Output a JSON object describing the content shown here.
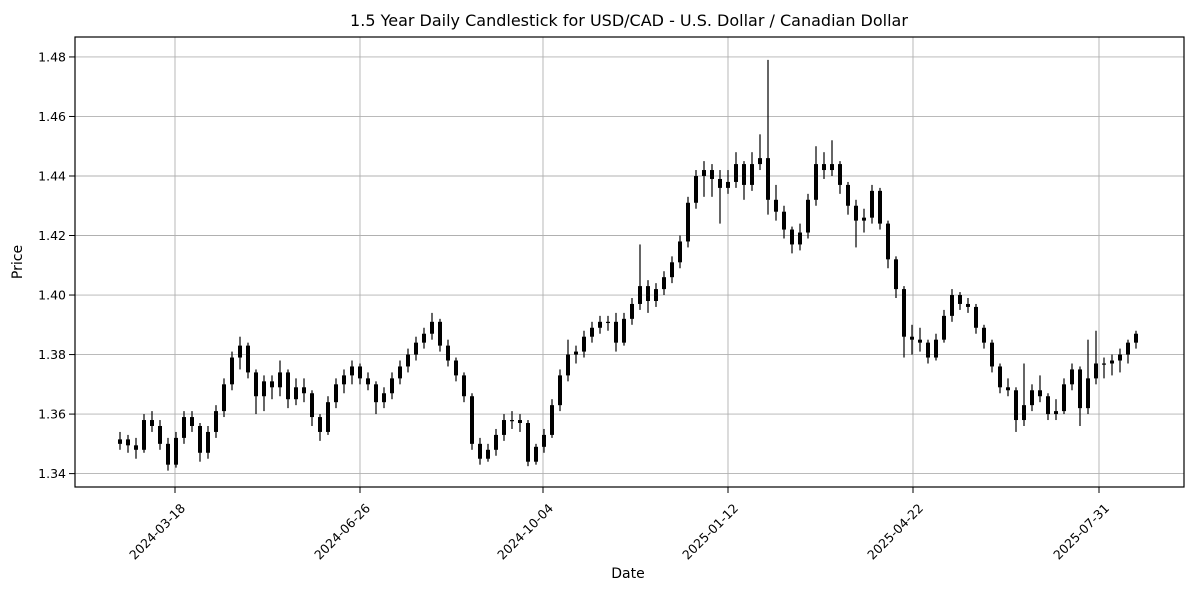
{
  "figure": {
    "title": "1.5 Year Daily Candlestick for USD/CAD - U.S. Dollar / Canadian Dollar",
    "xlabel": "Date",
    "ylabel": "Price"
  },
  "chart_data": {
    "type": "candlestick",
    "symbol": "USD/CAD",
    "title": "1.5 Year Daily Candlestick for USD/CAD - U.S. Dollar / Canadian Dollar",
    "xlabel": "Date",
    "ylabel": "Price",
    "grid": true,
    "legend": false,
    "ylim": [
      1.3355,
      1.4867
    ],
    "yticks": [
      1.34,
      1.36,
      1.38,
      1.4,
      1.42,
      1.44,
      1.46,
      1.48
    ],
    "xticks": [
      {
        "label": "2024-03-18",
        "index": 6.875
      },
      {
        "label": "2024-06-26",
        "index": 30.0
      },
      {
        "label": "2024-10-04",
        "index": 52.875
      },
      {
        "label": "2025-01-12",
        "index": 76.0
      },
      {
        "label": "2025-04-22",
        "index": 99.125
      },
      {
        "label": "2025-07-31",
        "index": 122.375
      }
    ],
    "colors": {
      "candle": "#000000",
      "grid": "#b0b0b0",
      "frame": "#000000",
      "background": "#ffffff"
    },
    "columns": [
      "date",
      "open",
      "high",
      "low",
      "close"
    ],
    "candles": [
      [
        "2024-02-17",
        1.35,
        1.354,
        1.348,
        1.3515
      ],
      [
        "2024-02-21",
        1.3515,
        1.353,
        1.347,
        1.3495
      ],
      [
        "2024-02-26",
        1.3495,
        1.352,
        1.345,
        1.348
      ],
      [
        "2024-03-01",
        1.348,
        1.36,
        1.347,
        1.358
      ],
      [
        "2024-03-06",
        1.358,
        1.361,
        1.354,
        1.356
      ],
      [
        "2024-03-10",
        1.356,
        1.358,
        1.348,
        1.35
      ],
      [
        "2024-03-14",
        1.35,
        1.352,
        1.341,
        1.343
      ],
      [
        "2024-03-19",
        1.343,
        1.354,
        1.342,
        1.352
      ],
      [
        "2024-03-23",
        1.352,
        1.361,
        1.35,
        1.359
      ],
      [
        "2024-03-28",
        1.359,
        1.361,
        1.354,
        1.356
      ],
      [
        "2024-04-01",
        1.356,
        1.357,
        1.344,
        1.347
      ],
      [
        "2024-04-05",
        1.347,
        1.356,
        1.345,
        1.354
      ],
      [
        "2024-04-10",
        1.354,
        1.363,
        1.352,
        1.361
      ],
      [
        "2024-04-14",
        1.361,
        1.372,
        1.359,
        1.37
      ],
      [
        "2024-04-18",
        1.37,
        1.381,
        1.368,
        1.379
      ],
      [
        "2024-04-23",
        1.379,
        1.386,
        1.375,
        1.383
      ],
      [
        "2024-04-27",
        1.383,
        1.384,
        1.372,
        1.374
      ],
      [
        "2024-05-01",
        1.374,
        1.375,
        1.36,
        1.366
      ],
      [
        "2024-05-06",
        1.366,
        1.373,
        1.361,
        1.371
      ],
      [
        "2024-05-10",
        1.371,
        1.373,
        1.365,
        1.369
      ],
      [
        "2024-05-14",
        1.369,
        1.378,
        1.366,
        1.374
      ],
      [
        "2024-05-19",
        1.374,
        1.375,
        1.362,
        1.365
      ],
      [
        "2024-05-23",
        1.365,
        1.372,
        1.363,
        1.369
      ],
      [
        "2024-05-27",
        1.369,
        1.372,
        1.364,
        1.367
      ],
      [
        "2024-06-01",
        1.367,
        1.368,
        1.356,
        1.359
      ],
      [
        "2024-06-05",
        1.359,
        1.36,
        1.351,
        1.354
      ],
      [
        "2024-06-09",
        1.354,
        1.366,
        1.353,
        1.364
      ],
      [
        "2024-06-14",
        1.364,
        1.372,
        1.362,
        1.37
      ],
      [
        "2024-06-18",
        1.37,
        1.375,
        1.367,
        1.373
      ],
      [
        "2024-06-22",
        1.373,
        1.378,
        1.37,
        1.376
      ],
      [
        "2024-06-27",
        1.376,
        1.377,
        1.37,
        1.372
      ],
      [
        "2024-07-01",
        1.372,
        1.374,
        1.368,
        1.37
      ],
      [
        "2024-07-05",
        1.37,
        1.371,
        1.36,
        1.364
      ],
      [
        "2024-07-10",
        1.364,
        1.369,
        1.362,
        1.367
      ],
      [
        "2024-07-14",
        1.367,
        1.374,
        1.365,
        1.372
      ],
      [
        "2024-07-18",
        1.372,
        1.378,
        1.37,
        1.376
      ],
      [
        "2024-07-23",
        1.376,
        1.382,
        1.374,
        1.38
      ],
      [
        "2024-07-27",
        1.38,
        1.386,
        1.378,
        1.384
      ],
      [
        "2024-07-31",
        1.384,
        1.389,
        1.382,
        1.387
      ],
      [
        "2024-08-05",
        1.387,
        1.394,
        1.385,
        1.391
      ],
      [
        "2024-08-09",
        1.391,
        1.392,
        1.381,
        1.383
      ],
      [
        "2024-08-13",
        1.383,
        1.385,
        1.376,
        1.378
      ],
      [
        "2024-08-18",
        1.378,
        1.379,
        1.371,
        1.373
      ],
      [
        "2024-08-22",
        1.373,
        1.374,
        1.364,
        1.366
      ],
      [
        "2024-08-26",
        1.366,
        1.367,
        1.348,
        1.35
      ],
      [
        "2024-08-31",
        1.35,
        1.352,
        1.343,
        1.345
      ],
      [
        "2024-09-04",
        1.345,
        1.35,
        1.344,
        1.348
      ],
      [
        "2024-09-08",
        1.348,
        1.355,
        1.346,
        1.353
      ],
      [
        "2024-09-13",
        1.353,
        1.36,
        1.351,
        1.358
      ],
      [
        "2024-09-17",
        1.358,
        1.361,
        1.355,
        1.358
      ],
      [
        "2024-09-21",
        1.358,
        1.36,
        1.354,
        1.357
      ],
      [
        "2024-09-26",
        1.357,
        1.358,
        1.3425,
        1.344
      ],
      [
        "2024-09-30",
        1.344,
        1.35,
        1.343,
        1.349
      ],
      [
        "2024-10-04",
        1.349,
        1.355,
        1.347,
        1.353
      ],
      [
        "2024-10-09",
        1.353,
        1.365,
        1.352,
        1.363
      ],
      [
        "2024-10-13",
        1.363,
        1.375,
        1.361,
        1.373
      ],
      [
        "2024-10-17",
        1.373,
        1.385,
        1.371,
        1.38
      ],
      [
        "2024-10-22",
        1.38,
        1.383,
        1.377,
        1.381
      ],
      [
        "2024-10-26",
        1.381,
        1.388,
        1.379,
        1.386
      ],
      [
        "2024-10-30",
        1.386,
        1.391,
        1.384,
        1.389
      ],
      [
        "2024-11-04",
        1.389,
        1.393,
        1.387,
        1.391
      ],
      [
        "2024-11-08",
        1.391,
        1.393,
        1.388,
        1.391
      ],
      [
        "2024-11-12",
        1.391,
        1.394,
        1.381,
        1.384
      ],
      [
        "2024-11-17",
        1.384,
        1.394,
        1.383,
        1.392
      ],
      [
        "2024-11-21",
        1.392,
        1.399,
        1.39,
        1.397
      ],
      [
        "2024-11-25",
        1.397,
        1.417,
        1.395,
        1.403
      ],
      [
        "2024-11-30",
        1.403,
        1.405,
        1.394,
        1.398
      ],
      [
        "2024-12-04",
        1.398,
        1.404,
        1.396,
        1.402
      ],
      [
        "2024-12-08",
        1.402,
        1.408,
        1.4,
        1.406
      ],
      [
        "2024-12-13",
        1.406,
        1.413,
        1.404,
        1.411
      ],
      [
        "2024-12-17",
        1.411,
        1.42,
        1.409,
        1.418
      ],
      [
        "2024-12-21",
        1.418,
        1.433,
        1.416,
        1.431
      ],
      [
        "2024-12-26",
        1.431,
        1.442,
        1.429,
        1.44
      ],
      [
        "2024-12-30",
        1.44,
        1.445,
        1.433,
        1.442
      ],
      [
        "2025-01-03",
        1.442,
        1.444,
        1.433,
        1.439
      ],
      [
        "2025-01-08",
        1.439,
        1.442,
        1.424,
        1.436
      ],
      [
        "2025-01-12",
        1.436,
        1.442,
        1.434,
        1.438
      ],
      [
        "2025-01-16",
        1.438,
        1.448,
        1.436,
        1.444
      ],
      [
        "2025-01-21",
        1.444,
        1.445,
        1.432,
        1.437
      ],
      [
        "2025-01-25",
        1.437,
        1.448,
        1.435,
        1.444
      ],
      [
        "2025-01-29",
        1.444,
        1.454,
        1.442,
        1.446
      ],
      [
        "2025-02-03",
        1.446,
        1.479,
        1.427,
        1.432
      ],
      [
        "2025-02-07",
        1.432,
        1.437,
        1.425,
        1.428
      ],
      [
        "2025-02-11",
        1.428,
        1.43,
        1.419,
        1.422
      ],
      [
        "2025-02-16",
        1.422,
        1.423,
        1.414,
        1.417
      ],
      [
        "2025-02-20",
        1.417,
        1.424,
        1.415,
        1.421
      ],
      [
        "2025-02-24",
        1.421,
        1.434,
        1.419,
        1.432
      ],
      [
        "2025-03-01",
        1.432,
        1.45,
        1.43,
        1.444
      ],
      [
        "2025-03-05",
        1.444,
        1.448,
        1.439,
        1.442
      ],
      [
        "2025-03-09",
        1.442,
        1.452,
        1.44,
        1.444
      ],
      [
        "2025-03-14",
        1.444,
        1.445,
        1.434,
        1.437
      ],
      [
        "2025-03-18",
        1.437,
        1.438,
        1.427,
        1.43
      ],
      [
        "2025-03-22",
        1.43,
        1.432,
        1.416,
        1.425
      ],
      [
        "2025-03-27",
        1.425,
        1.429,
        1.421,
        1.426
      ],
      [
        "2025-03-31",
        1.426,
        1.437,
        1.424,
        1.435
      ],
      [
        "2025-04-04",
        1.435,
        1.436,
        1.422,
        1.424
      ],
      [
        "2025-04-09",
        1.424,
        1.425,
        1.409,
        1.412
      ],
      [
        "2025-04-13",
        1.412,
        1.413,
        1.399,
        1.402
      ],
      [
        "2025-04-17",
        1.402,
        1.403,
        1.379,
        1.386
      ],
      [
        "2025-04-22",
        1.386,
        1.39,
        1.38,
        1.385
      ],
      [
        "2025-04-26",
        1.385,
        1.389,
        1.381,
        1.384
      ],
      [
        "2025-04-30",
        1.384,
        1.385,
        1.377,
        1.379
      ],
      [
        "2025-05-05",
        1.379,
        1.387,
        1.378,
        1.385
      ],
      [
        "2025-05-09",
        1.385,
        1.395,
        1.384,
        1.393
      ],
      [
        "2025-05-13",
        1.393,
        1.402,
        1.391,
        1.4
      ],
      [
        "2025-05-18",
        1.4,
        1.401,
        1.395,
        1.397
      ],
      [
        "2025-05-22",
        1.397,
        1.399,
        1.394,
        1.396
      ],
      [
        "2025-05-26",
        1.396,
        1.397,
        1.387,
        1.389
      ],
      [
        "2025-05-31",
        1.389,
        1.39,
        1.382,
        1.384
      ],
      [
        "2025-06-04",
        1.384,
        1.385,
        1.374,
        1.376
      ],
      [
        "2025-06-08",
        1.376,
        1.377,
        1.367,
        1.369
      ],
      [
        "2025-06-13",
        1.369,
        1.372,
        1.366,
        1.368
      ],
      [
        "2025-06-17",
        1.368,
        1.369,
        1.354,
        1.358
      ],
      [
        "2025-06-21",
        1.358,
        1.377,
        1.356,
        1.363
      ],
      [
        "2025-06-26",
        1.363,
        1.37,
        1.361,
        1.368
      ],
      [
        "2025-06-30",
        1.368,
        1.373,
        1.364,
        1.366
      ],
      [
        "2025-07-04",
        1.366,
        1.367,
        1.358,
        1.36
      ],
      [
        "2025-07-09",
        1.36,
        1.365,
        1.358,
        1.361
      ],
      [
        "2025-07-13",
        1.361,
        1.372,
        1.36,
        1.37
      ],
      [
        "2025-07-17",
        1.37,
        1.377,
        1.368,
        1.375
      ],
      [
        "2025-07-22",
        1.375,
        1.376,
        1.356,
        1.362
      ],
      [
        "2025-07-26",
        1.362,
        1.385,
        1.36,
        1.372
      ],
      [
        "2025-07-30",
        1.372,
        1.388,
        1.37,
        1.377
      ],
      [
        "2025-08-04",
        1.377,
        1.379,
        1.372,
        1.377
      ],
      [
        "2025-08-08",
        1.377,
        1.38,
        1.373,
        1.378
      ],
      [
        "2025-08-12",
        1.378,
        1.382,
        1.374,
        1.38
      ],
      [
        "2025-08-17",
        1.38,
        1.385,
        1.377,
        1.384
      ],
      [
        "2025-08-21",
        1.384,
        1.388,
        1.382,
        1.387
      ]
    ]
  }
}
